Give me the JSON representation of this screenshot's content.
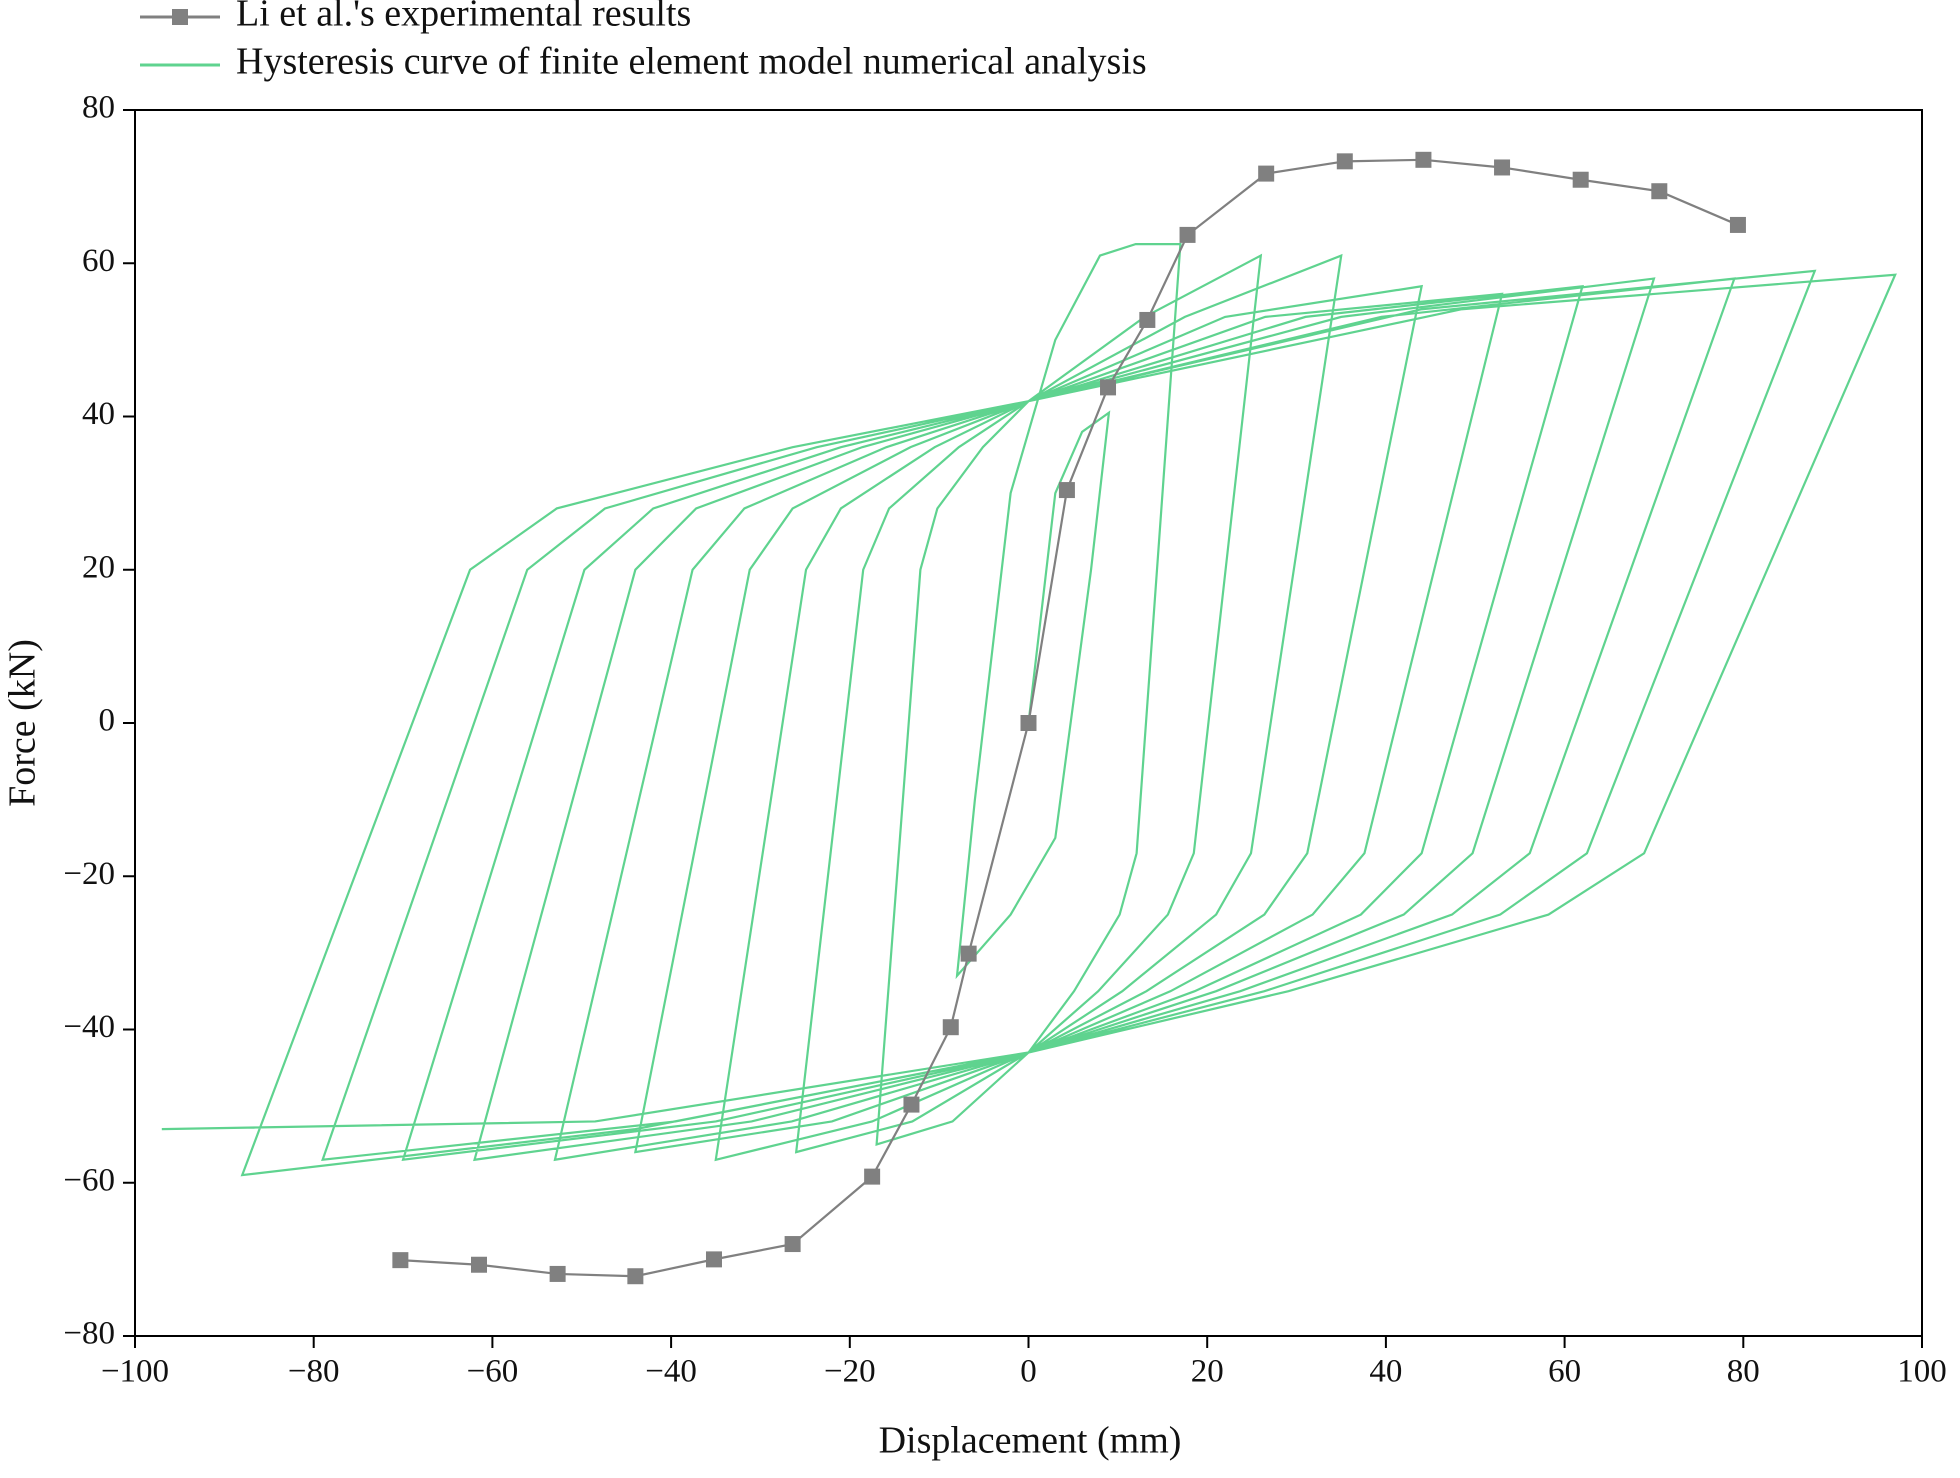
{
  "chart_data": {
    "type": "line",
    "xlabel": "Displacement (mm)",
    "ylabel": "Force (kN)",
    "xlim": [
      -100,
      100
    ],
    "ylim": [
      -80,
      80
    ],
    "xticks": [
      {
        "value": -100,
        "label": "−100"
      },
      {
        "value": -80,
        "label": "−80"
      },
      {
        "value": -60,
        "label": "−60"
      },
      {
        "value": -40,
        "label": "−40"
      },
      {
        "value": -20,
        "label": "−20"
      },
      0,
      20,
      40,
      60,
      80,
      100
    ],
    "yticks": [
      {
        "value": -80,
        "label": "−80"
      },
      {
        "value": -60,
        "label": "−60"
      },
      {
        "value": -40,
        "label": "−40"
      },
      {
        "value": -20,
        "label": "−20"
      },
      0,
      20,
      40,
      60,
      80
    ],
    "grid": false,
    "legend": "top-left",
    "series": [
      {
        "name": "Li et al.'s experimental results",
        "color": "#808080",
        "marker": "square",
        "x": [
          -70.3,
          -61.5,
          -52.7,
          -44,
          -35.2,
          -26.4,
          -17.5,
          -13.1,
          -8.7,
          -6.7,
          0,
          4.3,
          8.9,
          13.3,
          17.8,
          26.6,
          35.4,
          44.2,
          53,
          61.8,
          70.6,
          79.4
        ],
        "values": [
          -70.1,
          -70.7,
          -71.9,
          -72.2,
          -70,
          -68,
          -59.2,
          -49.8,
          -39.7,
          -30.1,
          0,
          30.4,
          43.8,
          52.6,
          63.7,
          71.7,
          73.3,
          73.5,
          72.5,
          70.9,
          69.4,
          65
        ]
      },
      {
        "name": "Hysteresis curve of finite element model numerical analysis",
        "color": "#5fd38f",
        "marker": "none",
        "x": [
          0,
          3,
          6,
          9,
          7,
          3,
          -2,
          -8,
          -6,
          -2,
          3,
          8,
          12,
          17,
          12.1,
          10.2,
          5.1,
          0,
          -8.5,
          -17,
          -12.1,
          -10.2,
          -5.1,
          0,
          13,
          26,
          18.5,
          15.6,
          7.8,
          0,
          -13,
          -26,
          -18.5,
          -15.6,
          -7.8,
          0,
          17.5,
          35,
          24.9,
          21,
          10.5,
          0,
          -17.5,
          -35,
          -24.9,
          -21,
          -10.5,
          0,
          22,
          44,
          31.2,
          26.4,
          13.2,
          0,
          -22,
          -44,
          -31.2,
          -26.4,
          -13.2,
          0,
          26.5,
          53,
          37.6,
          31.8,
          15.9,
          0,
          -26.5,
          -53,
          -37.6,
          -31.8,
          -15.9,
          0,
          31,
          62,
          44,
          37.2,
          18.6,
          0,
          -31,
          -62,
          -44,
          -37.2,
          -18.6,
          0,
          35,
          70,
          49.7,
          42,
          21,
          0,
          -35,
          -70,
          -49.7,
          -42,
          -21,
          0,
          39.5,
          79,
          56.1,
          47.4,
          23.7,
          0,
          -39.5,
          -79,
          -56.1,
          -47.4,
          -23.7,
          0,
          44,
          88,
          62.5,
          52.8,
          26.4,
          0,
          -44,
          -88,
          -62.5,
          -52.8,
          -26.4,
          0,
          48.5,
          97,
          68.9,
          58.2,
          29.1,
          0,
          -48.5,
          -97
        ],
        "values": [
          0,
          30,
          38,
          40.5,
          20,
          -15,
          -25,
          -33,
          -10,
          30,
          50,
          61,
          62.5,
          62.5,
          -17,
          -25,
          -35,
          -43,
          -52,
          -55,
          20,
          28,
          36,
          42,
          53,
          61,
          -17,
          -25,
          -35,
          -43,
          -52,
          -56,
          20,
          28,
          36,
          42,
          53,
          61,
          -17,
          -25,
          -35,
          -43,
          -52,
          -57,
          20,
          28,
          36,
          42,
          53,
          57,
          -17,
          -25,
          -35,
          -43,
          -52,
          -56,
          20,
          28,
          36,
          42,
          53,
          56,
          -17,
          -25,
          -35,
          -43,
          -52,
          -57,
          20,
          28,
          36,
          42,
          53,
          57,
          -17,
          -25,
          -35,
          -43,
          -52,
          -57,
          20,
          28,
          36,
          42,
          53,
          58,
          -17,
          -25,
          -35,
          -43,
          -52,
          -57,
          20,
          28,
          36,
          42,
          53,
          58,
          -17,
          -25,
          -35,
          -43,
          -52,
          -57,
          20,
          28,
          36,
          42,
          54,
          59,
          -17,
          -25,
          -35,
          -43,
          -53,
          -59,
          20,
          28,
          36,
          42,
          54,
          58.5,
          -17,
          -25,
          -35,
          -43,
          -52,
          -53
        ]
      }
    ]
  }
}
